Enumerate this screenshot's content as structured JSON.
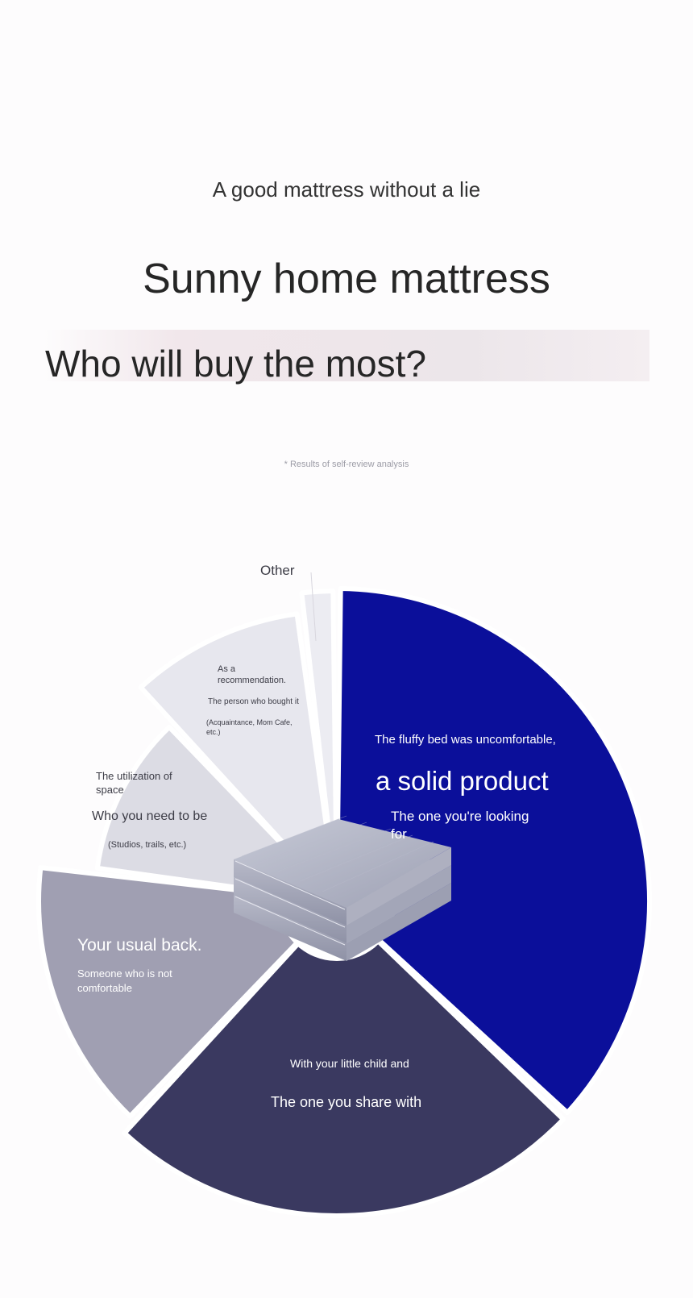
{
  "header": {
    "tagline": "A good mattress without a lie",
    "brand": "Sunny home mattress",
    "question": "Who will buy the most?",
    "footnote": "* Results of self-review analysis"
  },
  "chart_data": {
    "type": "pie",
    "title": "Who will buy the most?",
    "slices": [
      {
        "lines": [
          "The fluffy bed was uncomfortable,",
          "a solid product",
          "The one you're looking",
          "for"
        ],
        "value": 37,
        "color": "#0b0f9a"
      },
      {
        "lines": [
          "With your little child and",
          "The one you share with"
        ],
        "value": 25,
        "color": "#3a3960"
      },
      {
        "lines": [
          "Your usual back.",
          "Someone who is not",
          "comfortable"
        ],
        "value": 15,
        "color": "#a09fb2"
      },
      {
        "lines": [
          "The utilization of",
          "space",
          "Who you need to be",
          "(Studios, trails, etc.)"
        ],
        "value": 11,
        "color": "#dcdce4"
      },
      {
        "lines": [
          "As a",
          "recommendation.",
          "The person who bought it",
          "(Acquaintance, Mom Cafe,",
          "etc.)"
        ],
        "value": 10,
        "color": "#e7e7ee"
      },
      {
        "lines": [
          "Other"
        ],
        "value": 2,
        "color": "#ececf2"
      }
    ]
  }
}
